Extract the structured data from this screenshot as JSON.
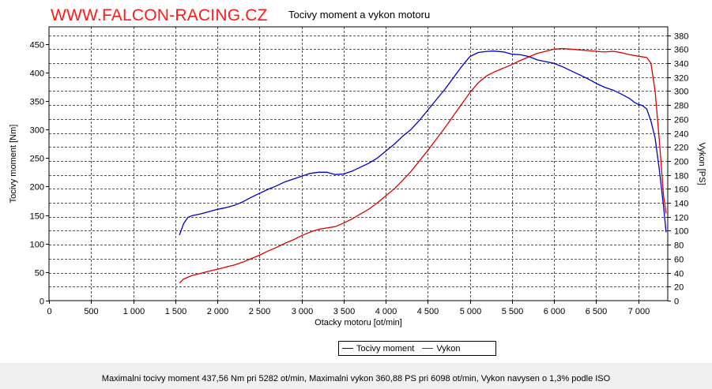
{
  "brand": "WWW.FALCON-RACING.CZ",
  "footer": "Maximalni tocivy moment 437,56 Nm pri 5282 ot/min,  Maximalni vykon 360,88 PS pri 6098 ot/min,  Vykon navysen o 1,3% podle ISO",
  "colors": {
    "torque": "#0000cc",
    "power": "#dd0000",
    "brand": "#ff1a1a"
  },
  "chart_data": {
    "type": "line",
    "title": "Tocivy moment a vykon motoru",
    "xlabel": "Otacky motoru [ot/min]",
    "ylabel": "Tocivy moment [Nm]",
    "y2label": "Vykon [PS]",
    "xlim": [
      0,
      7350
    ],
    "ylim": [
      0,
      480
    ],
    "y2lim": [
      0,
      392
    ],
    "grid": true,
    "legend_position": "bottom",
    "x_ticks": [
      {
        "v": 0,
        "label": "0"
      },
      {
        "v": 500,
        "label": "500"
      },
      {
        "v": 1000,
        "label": "1 000"
      },
      {
        "v": 1500,
        "label": "1 500"
      },
      {
        "v": 2000,
        "label": "2 000"
      },
      {
        "v": 2500,
        "label": "2 500"
      },
      {
        "v": 3000,
        "label": "3 000"
      },
      {
        "v": 3500,
        "label": "3 500"
      },
      {
        "v": 4000,
        "label": "4 000"
      },
      {
        "v": 4500,
        "label": "4 500"
      },
      {
        "v": 5000,
        "label": "5 000"
      },
      {
        "v": 5500,
        "label": "5 500"
      },
      {
        "v": 6000,
        "label": "6 000"
      },
      {
        "v": 6500,
        "label": "6 500"
      },
      {
        "v": 7000,
        "label": "7 000"
      }
    ],
    "y_ticks": [
      0,
      50,
      100,
      150,
      200,
      250,
      300,
      350,
      400,
      450
    ],
    "y2_ticks": [
      0,
      20,
      40,
      60,
      80,
      100,
      120,
      140,
      160,
      180,
      200,
      220,
      240,
      260,
      280,
      300,
      320,
      340,
      360,
      380
    ],
    "series": [
      {
        "name": "Tocivy moment",
        "axis": "left",
        "x": [
          1550,
          1600,
          1650,
          1700,
          1800,
          1900,
          2000,
          2100,
          2200,
          2300,
          2400,
          2500,
          2600,
          2700,
          2800,
          2900,
          3000,
          3100,
          3200,
          3300,
          3400,
          3500,
          3600,
          3700,
          3800,
          3900,
          4000,
          4100,
          4200,
          4300,
          4400,
          4500,
          4600,
          4700,
          4800,
          4900,
          5000,
          5100,
          5200,
          5282,
          5400,
          5500,
          5600,
          5700,
          5800,
          5900,
          6000,
          6100,
          6200,
          6300,
          6400,
          6500,
          6600,
          6700,
          6800,
          6900,
          6950,
          7000,
          7050,
          7100,
          7150,
          7200,
          7250,
          7300,
          7330
        ],
        "values": [
          115,
          135,
          146,
          149,
          152,
          156,
          160,
          163,
          167,
          173,
          181,
          188,
          195,
          201,
          208,
          213,
          218,
          223,
          225,
          225,
          221,
          222,
          227,
          234,
          241,
          250,
          262,
          274,
          288,
          300,
          316,
          334,
          352,
          370,
          390,
          410,
          428,
          435,
          437,
          437.56,
          436,
          432,
          431,
          428,
          422,
          419,
          416,
          410,
          403,
          396,
          389,
          381,
          374,
          369,
          362,
          354,
          348,
          344,
          342,
          336,
          315,
          285,
          230,
          165,
          120
        ]
      },
      {
        "name": "Vykon",
        "axis": "right",
        "x": [
          1550,
          1600,
          1700,
          1800,
          1900,
          2000,
          2100,
          2200,
          2300,
          2400,
          2500,
          2600,
          2700,
          2800,
          2900,
          3000,
          3100,
          3200,
          3300,
          3400,
          3500,
          3600,
          3700,
          3800,
          3900,
          4000,
          4100,
          4200,
          4300,
          4400,
          4500,
          4600,
          4700,
          4800,
          4900,
          5000,
          5100,
          5200,
          5300,
          5400,
          5500,
          5600,
          5700,
          5800,
          5900,
          6000,
          6098,
          6200,
          6300,
          6400,
          6500,
          6600,
          6700,
          6800,
          6900,
          7000,
          7100,
          7150,
          7200,
          7250,
          7300,
          7330
        ],
        "values": [
          25,
          31,
          36,
          39,
          42,
          45,
          48,
          51,
          55,
          60,
          65,
          71,
          76,
          82,
          87,
          93,
          98,
          102,
          104,
          106,
          111,
          117,
          124,
          131,
          140,
          150,
          160,
          172,
          185,
          200,
          215,
          231,
          247,
          264,
          281,
          298,
          312,
          322,
          328,
          333,
          338,
          344,
          349,
          354,
          357,
          360,
          360.88,
          360,
          359,
          358,
          357,
          356,
          357,
          355,
          352,
          350,
          348,
          340,
          300,
          230,
          150,
          125
        ]
      }
    ]
  }
}
